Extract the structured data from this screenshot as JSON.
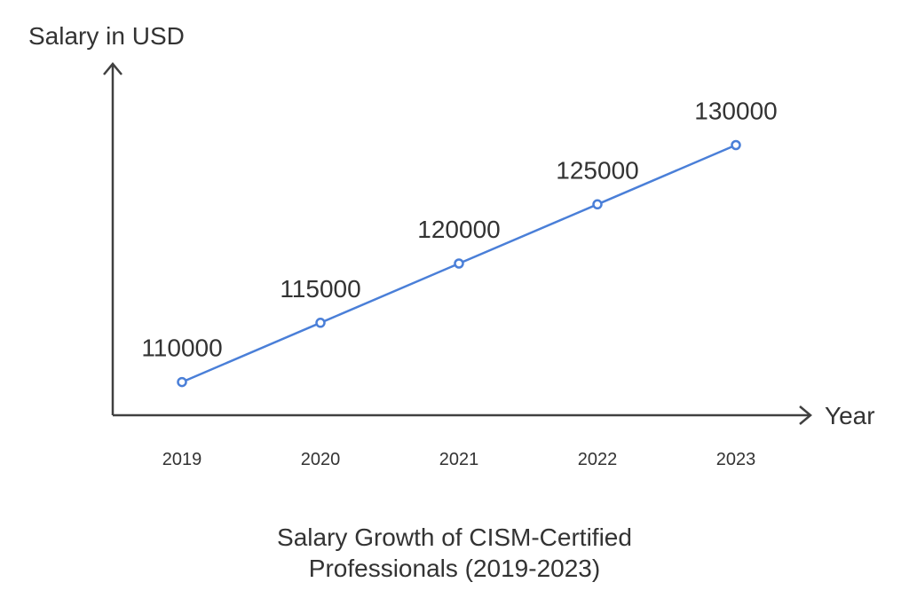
{
  "chart_data": {
    "type": "line",
    "title_lines": [
      "Salary Growth of CISM-Certified",
      "Professionals (2019-2023)"
    ],
    "xlabel": "Year",
    "ylabel": "Salary in USD",
    "categories": [
      "2019",
      "2020",
      "2021",
      "2022",
      "2023"
    ],
    "series": [
      {
        "name": "Salary",
        "values": [
          110000,
          115000,
          120000,
          125000,
          130000
        ],
        "labels": [
          "110000",
          "115000",
          "120000",
          "125000",
          "130000"
        ],
        "color": "#4a7fd8"
      }
    ],
    "ylim": [
      107200,
      137000
    ],
    "grid": false,
    "legend": "none"
  }
}
